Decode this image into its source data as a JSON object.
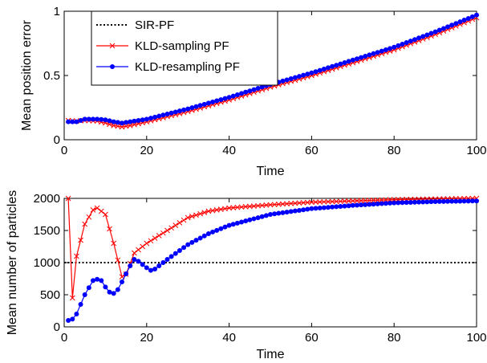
{
  "chart_data": [
    {
      "type": "line",
      "xlabel": "Time",
      "ylabel": "Mean position error",
      "xlim": [
        0,
        100
      ],
      "ylim": [
        0,
        1
      ],
      "xticks": [
        0,
        20,
        40,
        60,
        80,
        100
      ],
      "yticks": [
        0,
        0.5,
        1
      ],
      "xtick_labels": [
        "0",
        "20",
        "40",
        "60",
        "80",
        "100"
      ],
      "ytick_labels": [
        "0",
        "0.5",
        "1"
      ],
      "grid": false,
      "legend_position": "top-left",
      "legend": [
        "SIR-PF",
        "KLD-sampling PF",
        "KLD-resampling PF"
      ],
      "series": [
        {
          "name": "KLD-sampling PF",
          "color": "#ff0000",
          "marker": "x",
          "points": [
            [
              1,
              0.15
            ],
            [
              3,
              0.145
            ],
            [
              5,
              0.15
            ],
            [
              8,
              0.145
            ],
            [
              10,
              0.13
            ],
            [
              12,
              0.11
            ],
            [
              14,
              0.1
            ],
            [
              16,
              0.11
            ],
            [
              20,
              0.14
            ],
            [
              30,
              0.22
            ],
            [
              40,
              0.31
            ],
            [
              50,
              0.41
            ],
            [
              60,
              0.5
            ],
            [
              70,
              0.6
            ],
            [
              80,
              0.7
            ],
            [
              90,
              0.82
            ],
            [
              100,
              0.95
            ]
          ]
        },
        {
          "name": "KLD-resampling PF",
          "color": "#0000ff",
          "marker": "dot",
          "points": [
            [
              1,
              0.14
            ],
            [
              3,
              0.14
            ],
            [
              5,
              0.16
            ],
            [
              8,
              0.16
            ],
            [
              10,
              0.155
            ],
            [
              12,
              0.14
            ],
            [
              14,
              0.13
            ],
            [
              16,
              0.14
            ],
            [
              20,
              0.16
            ],
            [
              30,
              0.24
            ],
            [
              40,
              0.33
            ],
            [
              50,
              0.43
            ],
            [
              60,
              0.52
            ],
            [
              70,
              0.62
            ],
            [
              80,
              0.72
            ],
            [
              90,
              0.84
            ],
            [
              100,
              0.97
            ]
          ]
        }
      ]
    },
    {
      "type": "line",
      "xlabel": "Time",
      "ylabel": "Mean number of particles",
      "xlim": [
        0,
        100
      ],
      "ylim": [
        0,
        2000
      ],
      "xticks": [
        0,
        20,
        40,
        60,
        80,
        100
      ],
      "yticks": [
        0,
        500,
        1000,
        1500,
        2000
      ],
      "xtick_labels": [
        "0",
        "20",
        "40",
        "60",
        "80",
        "100"
      ],
      "ytick_labels": [
        "0",
        "500",
        "1000",
        "1500",
        "2000"
      ],
      "grid": false,
      "series": [
        {
          "name": "SIR-PF",
          "color": "#000000",
          "style": "dotted",
          "points": [
            [
              0,
              1000
            ],
            [
              100,
              1000
            ]
          ]
        },
        {
          "name": "KLD-sampling PF",
          "color": "#ff0000",
          "marker": "x",
          "points": [
            [
              1,
              2000
            ],
            [
              2,
              450
            ],
            [
              3,
              1100
            ],
            [
              5,
              1600
            ],
            [
              7,
              1820
            ],
            [
              8,
              1850
            ],
            [
              10,
              1750
            ],
            [
              12,
              1300
            ],
            [
              14,
              780
            ],
            [
              15,
              820
            ],
            [
              17,
              1150
            ],
            [
              20,
              1300
            ],
            [
              25,
              1500
            ],
            [
              30,
              1700
            ],
            [
              35,
              1800
            ],
            [
              40,
              1850
            ],
            [
              50,
              1900
            ],
            [
              60,
              1940
            ],
            [
              70,
              1960
            ],
            [
              80,
              1980
            ],
            [
              90,
              1990
            ],
            [
              100,
              2000
            ]
          ]
        },
        {
          "name": "KLD-resampling PF",
          "color": "#0000ff",
          "marker": "dot",
          "points": [
            [
              1,
              100
            ],
            [
              2,
              120
            ],
            [
              3,
              200
            ],
            [
              5,
              500
            ],
            [
              7,
              720
            ],
            [
              8,
              740
            ],
            [
              9,
              720
            ],
            [
              10,
              620
            ],
            [
              11,
              540
            ],
            [
              12,
              520
            ],
            [
              13,
              580
            ],
            [
              14,
              700
            ],
            [
              16,
              950
            ],
            [
              17,
              1050
            ],
            [
              18,
              1020
            ],
            [
              20,
              920
            ],
            [
              21,
              880
            ],
            [
              22,
              900
            ],
            [
              25,
              1050
            ],
            [
              30,
              1280
            ],
            [
              35,
              1450
            ],
            [
              40,
              1580
            ],
            [
              50,
              1750
            ],
            [
              60,
              1840
            ],
            [
              70,
              1890
            ],
            [
              80,
              1930
            ],
            [
              90,
              1950
            ],
            [
              100,
              1960
            ]
          ]
        }
      ]
    }
  ]
}
